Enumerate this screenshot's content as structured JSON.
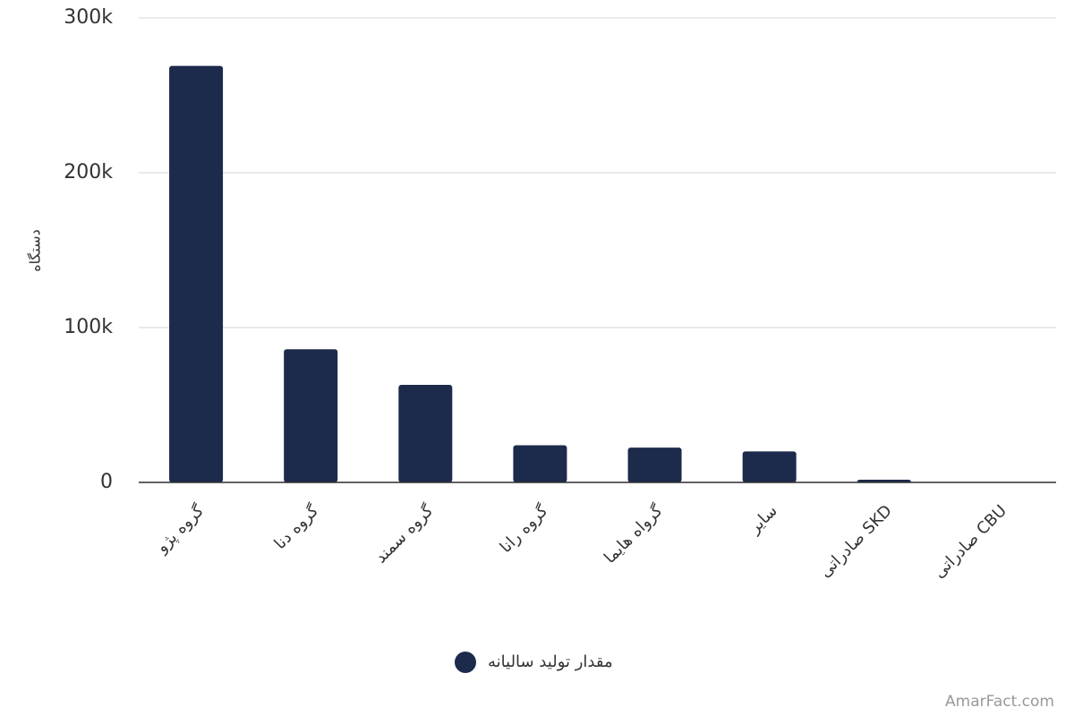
{
  "chart_data": {
    "type": "bar",
    "y_label": "دستگاه",
    "categories": [
      "گروه پژو",
      "گروه دنا",
      "گروه سمند",
      "گروه رانا",
      "گرواه هایما",
      "سایر",
      "صادراتی SKD",
      "صادراتی CBU"
    ],
    "series": [
      {
        "name": "مقدار تولید سالیانه",
        "color": "#1c2a4b",
        "values": [
          269000,
          86000,
          63000,
          24000,
          22500,
          20000,
          1700,
          0
        ]
      }
    ],
    "ylim": [
      0,
      300000
    ],
    "yticks": [
      {
        "value": 0,
        "label": "0"
      },
      {
        "value": 100000,
        "label": "100k"
      },
      {
        "value": 200000,
        "label": "200k"
      },
      {
        "value": 300000,
        "label": "300k"
      }
    ],
    "grid": true,
    "legend": "bottom",
    "watermark": "AmarFact.com"
  }
}
